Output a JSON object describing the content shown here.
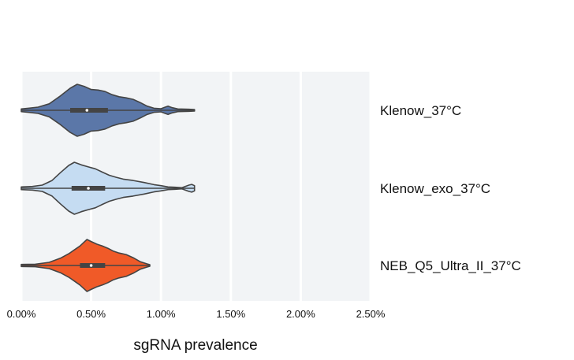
{
  "chart_data": {
    "type": "violin",
    "orientation": "horizontal",
    "xlabel": "sgRNA prevalence",
    "xlim": [
      0,
      2.5
    ],
    "xticks": [
      0,
      0.5,
      1.0,
      1.5,
      2.0,
      2.5
    ],
    "xtick_labels": [
      "0.00%",
      "0.50%",
      "1.00%",
      "1.50%",
      "2.00%",
      "2.50%"
    ],
    "grid": true,
    "colors": {
      "background": "#f2f4f6",
      "grid": "#ffffff",
      "outline": "#444444"
    },
    "series": [
      {
        "name": "Klenow_37°C",
        "color": "#5b77a8",
        "min": 0.0,
        "q1": 0.35,
        "median": 0.47,
        "q3": 0.62,
        "max": 1.24,
        "density": [
          [
            0.0,
            0.05
          ],
          [
            0.05,
            0.08
          ],
          [
            0.12,
            0.12
          ],
          [
            0.2,
            0.25
          ],
          [
            0.28,
            0.55
          ],
          [
            0.35,
            0.85
          ],
          [
            0.4,
            1.0
          ],
          [
            0.45,
            0.92
          ],
          [
            0.5,
            0.8
          ],
          [
            0.55,
            0.78
          ],
          [
            0.6,
            0.72
          ],
          [
            0.65,
            0.6
          ],
          [
            0.7,
            0.52
          ],
          [
            0.75,
            0.48
          ],
          [
            0.8,
            0.42
          ],
          [
            0.85,
            0.3
          ],
          [
            0.9,
            0.16
          ],
          [
            0.95,
            0.08
          ],
          [
            1.0,
            0.06
          ],
          [
            1.03,
            0.12
          ],
          [
            1.05,
            0.16
          ],
          [
            1.08,
            0.1
          ],
          [
            1.12,
            0.05
          ],
          [
            1.2,
            0.04
          ],
          [
            1.24,
            0.03
          ]
        ]
      },
      {
        "name": "Klenow_exo_37°C",
        "color": "#c5dcf2",
        "min": 0.0,
        "q1": 0.36,
        "median": 0.48,
        "q3": 0.6,
        "max": 1.24,
        "density": [
          [
            0.0,
            0.05
          ],
          [
            0.08,
            0.07
          ],
          [
            0.15,
            0.12
          ],
          [
            0.22,
            0.3
          ],
          [
            0.28,
            0.6
          ],
          [
            0.34,
            0.88
          ],
          [
            0.38,
            1.0
          ],
          [
            0.43,
            0.9
          ],
          [
            0.48,
            0.82
          ],
          [
            0.53,
            0.75
          ],
          [
            0.58,
            0.62
          ],
          [
            0.63,
            0.5
          ],
          [
            0.68,
            0.42
          ],
          [
            0.73,
            0.35
          ],
          [
            0.8,
            0.3
          ],
          [
            0.88,
            0.22
          ],
          [
            0.95,
            0.14
          ],
          [
            1.0,
            0.1
          ],
          [
            1.05,
            0.05
          ],
          [
            1.1,
            0.04
          ],
          [
            1.15,
            0.02
          ],
          [
            1.2,
            0.12
          ],
          [
            1.22,
            0.15
          ],
          [
            1.24,
            0.1
          ]
        ]
      },
      {
        "name": "NEB_Q5_Ultra_II_37°C",
        "color": "#f05a28",
        "min": 0.0,
        "q1": 0.42,
        "median": 0.5,
        "q3": 0.6,
        "max": 0.92,
        "density": [
          [
            0.0,
            0.04
          ],
          [
            0.1,
            0.05
          ],
          [
            0.2,
            0.12
          ],
          [
            0.28,
            0.28
          ],
          [
            0.34,
            0.45
          ],
          [
            0.38,
            0.6
          ],
          [
            0.42,
            0.75
          ],
          [
            0.45,
            0.9
          ],
          [
            0.47,
            1.0
          ],
          [
            0.5,
            0.92
          ],
          [
            0.54,
            0.82
          ],
          [
            0.58,
            0.75
          ],
          [
            0.62,
            0.66
          ],
          [
            0.66,
            0.55
          ],
          [
            0.7,
            0.48
          ],
          [
            0.75,
            0.42
          ],
          [
            0.8,
            0.3
          ],
          [
            0.85,
            0.15
          ],
          [
            0.9,
            0.06
          ],
          [
            0.92,
            0.03
          ]
        ]
      }
    ]
  }
}
